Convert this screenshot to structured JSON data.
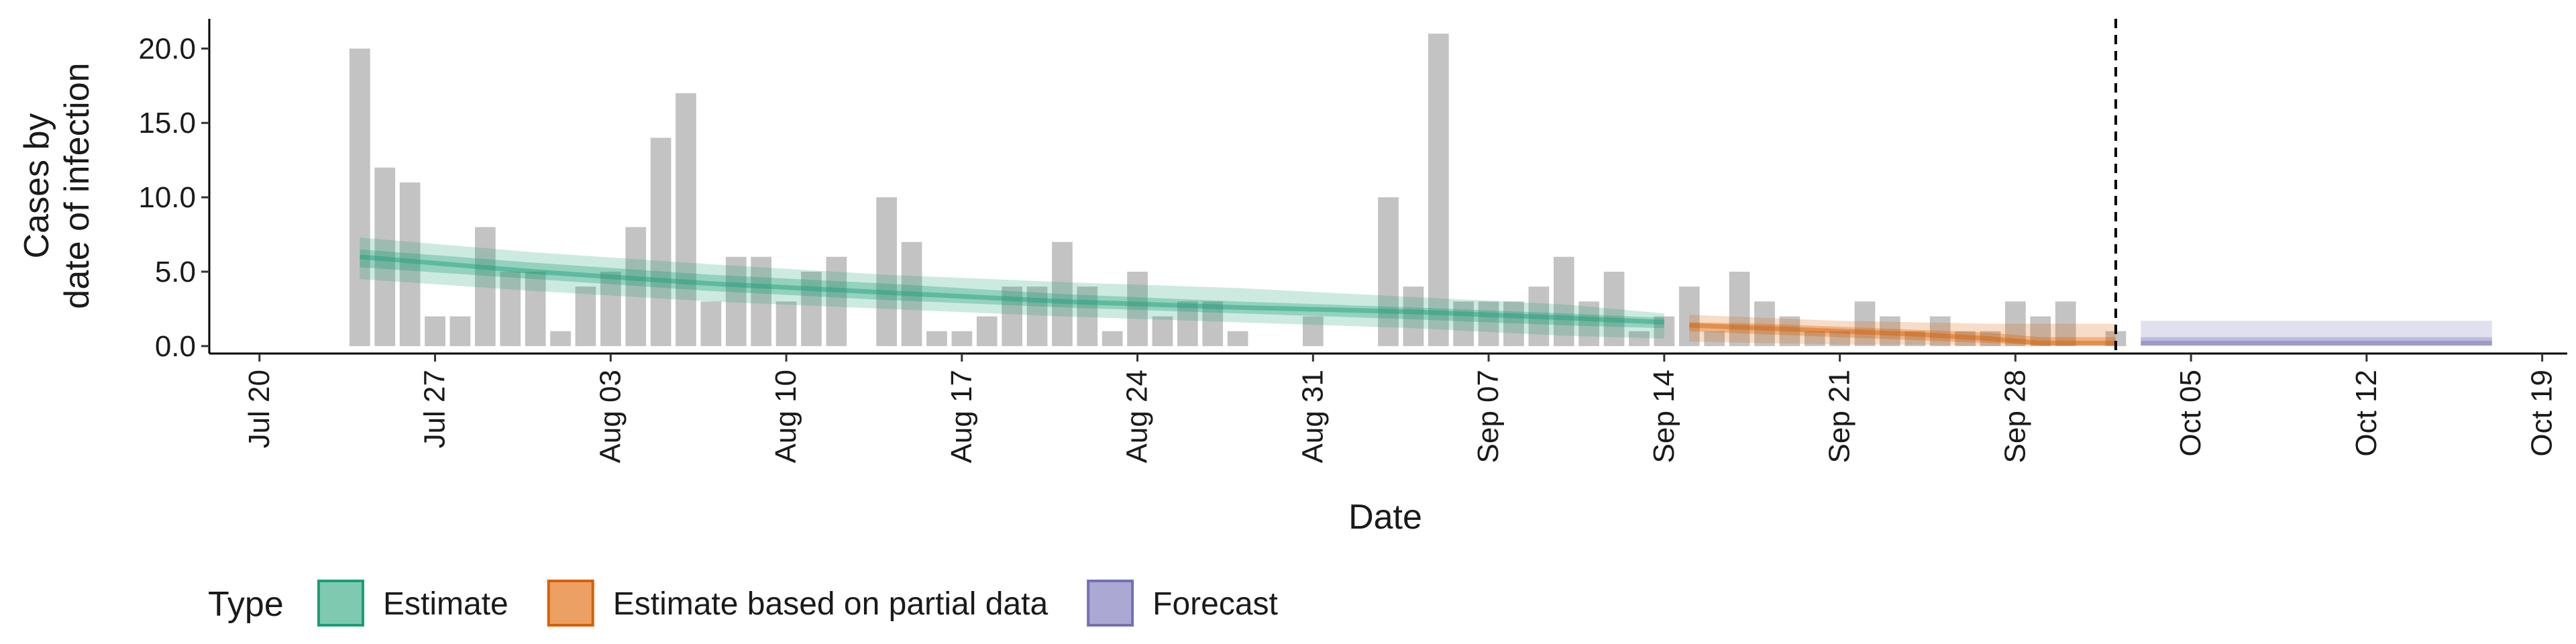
{
  "chart_data": {
    "type": "bar",
    "xlabel": "Date",
    "ylabel_lines": [
      "Cases by",
      "date of infection"
    ],
    "xlim": [
      "2020-07-18",
      "2020-10-20"
    ],
    "ylim": [
      -0.5,
      22
    ],
    "x_ticks": [
      {
        "date": "2020-07-20",
        "label": "Jul 20"
      },
      {
        "date": "2020-07-27",
        "label": "Jul 27"
      },
      {
        "date": "2020-08-03",
        "label": "Aug 03"
      },
      {
        "date": "2020-08-10",
        "label": "Aug 10"
      },
      {
        "date": "2020-08-17",
        "label": "Aug 17"
      },
      {
        "date": "2020-08-24",
        "label": "Aug 24"
      },
      {
        "date": "2020-08-31",
        "label": "Aug 31"
      },
      {
        "date": "2020-09-07",
        "label": "Sep 07"
      },
      {
        "date": "2020-09-14",
        "label": "Sep 14"
      },
      {
        "date": "2020-09-21",
        "label": "Sep 21"
      },
      {
        "date": "2020-09-28",
        "label": "Sep 28"
      },
      {
        "date": "2020-10-05",
        "label": "Oct 05"
      },
      {
        "date": "2020-10-12",
        "label": "Oct 12"
      },
      {
        "date": "2020-10-19",
        "label": "Oct 19"
      }
    ],
    "y_ticks": [
      {
        "value": 0,
        "label": "0.0"
      },
      {
        "value": 5,
        "label": "5.0"
      },
      {
        "value": 10,
        "label": "10.0"
      },
      {
        "value": 15,
        "label": "15.0"
      },
      {
        "value": 20,
        "label": "20.0"
      }
    ],
    "reported_cases": {
      "start_date": "2020-07-24",
      "values": [
        20,
        12,
        11,
        2,
        2,
        8,
        5,
        5,
        1,
        4,
        5,
        8,
        14,
        17,
        3,
        6,
        6,
        3,
        5,
        6,
        0,
        10,
        7,
        1,
        1,
        2,
        4,
        4,
        7,
        4,
        1,
        5,
        2,
        3,
        3,
        1,
        0,
        0,
        2,
        0,
        0,
        10,
        4,
        21,
        3,
        3,
        3,
        4,
        6,
        3,
        5,
        1,
        2,
        4,
        1,
        5,
        3,
        2,
        1,
        1,
        3,
        2,
        1,
        2,
        1,
        1,
        3,
        2,
        3,
        0,
        1
      ],
      "color": "#bdbdbd"
    },
    "cutoff_date": "2020-10-02",
    "series": [
      {
        "name": "Estimate",
        "color": "#1b9e77",
        "x": [
          "2020-07-24",
          "2020-07-31",
          "2020-08-07",
          "2020-08-14",
          "2020-08-21",
          "2020-08-28",
          "2020-09-04",
          "2020-09-10",
          "2020-09-14"
        ],
        "median": [
          6.0,
          5.0,
          4.2,
          3.6,
          3.0,
          2.6,
          2.3,
          1.9,
          1.6
        ],
        "lower90": [
          4.5,
          3.7,
          3.0,
          2.5,
          2.0,
          1.6,
          1.2,
          0.7,
          0.5
        ],
        "upper90": [
          7.3,
          6.3,
          5.5,
          4.8,
          4.3,
          3.9,
          3.3,
          2.8,
          2.2
        ],
        "lower50": [
          5.3,
          4.5,
          3.7,
          3.1,
          2.6,
          2.2,
          1.8,
          1.4,
          1.2
        ],
        "upper50": [
          6.5,
          5.6,
          4.8,
          4.2,
          3.5,
          3.0,
          2.6,
          2.2,
          1.9
        ]
      },
      {
        "name": "Estimate based on partial data",
        "color": "#d95f02",
        "x": [
          "2020-09-15",
          "2020-09-18",
          "2020-09-21",
          "2020-09-24",
          "2020-09-27",
          "2020-09-29",
          "2020-10-02"
        ],
        "median": [
          1.4,
          1.2,
          1.0,
          0.8,
          0.5,
          0.2,
          0.2
        ],
        "lower90": [
          0.3,
          0.2,
          0.1,
          0.1,
          0.0,
          0.0,
          0.0
        ],
        "upper90": [
          2.1,
          1.9,
          1.7,
          1.6,
          1.5,
          1.5,
          1.5
        ],
        "lower50": [
          1.0,
          0.8,
          0.6,
          0.4,
          0.2,
          0.05,
          0.05
        ],
        "upper50": [
          1.6,
          1.5,
          1.3,
          1.1,
          0.9,
          0.6,
          0.6
        ]
      },
      {
        "name": "Forecast",
        "color": "#7570b3",
        "x": [
          "2020-10-03",
          "2020-10-17"
        ],
        "median": [
          0.2,
          0.2
        ],
        "lower90": [
          0.0,
          0.0
        ],
        "upper90": [
          1.7,
          1.7
        ],
        "lower50": [
          0.05,
          0.05
        ],
        "upper50": [
          0.6,
          0.6
        ]
      }
    ],
    "legend": {
      "title": "Type",
      "position": "bottom",
      "items": [
        {
          "label": "Estimate",
          "fill": "#7fc9b0",
          "stroke": "#1b9e77"
        },
        {
          "label": "Estimate based on partial data",
          "fill": "#eca063",
          "stroke": "#d95f02"
        },
        {
          "label": "Forecast",
          "fill": "#aba8d3",
          "stroke": "#7570b3"
        }
      ]
    },
    "grid": false
  }
}
